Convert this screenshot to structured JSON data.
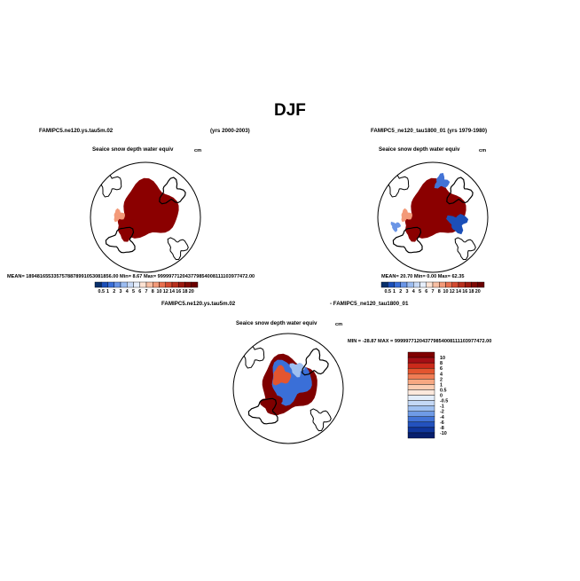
{
  "page": {
    "title": "DJF",
    "left_case": "FAMIPC5.ne120.ys.tau5m.02",
    "left_years": "(yrs 2000-2003)",
    "right_case": "FAMIPC5_ne120_tau1800_01 (yrs 1979-1980)",
    "diff_case_a": "FAMIPC5.ne120.ys.tau5m.02",
    "diff_case_b": "- FAMIPC5_ne120_tau1800_01"
  },
  "panels": {
    "left": {
      "var_title": "Seaice snow depth water equiv",
      "units": "cm",
      "stats": "MEAN= 1894816553357578878991053081856.00   Min=     8.67   Max=  999997712043779854008111103977472.00"
    },
    "right": {
      "var_title": "Seaice snow depth water equiv",
      "units": "cm",
      "stats": "MEAN=   20.70   Min=    0.00   Max=   62.35"
    },
    "diff": {
      "var_title": "Seaice snow depth water equiv",
      "units": "cm",
      "stats": "MIN = -28.87  MAX = 999997712043779854008111103977472.00"
    }
  },
  "colors": {
    "land_outline": "#000000",
    "ice_dark_red": "#8b0000"
  },
  "chart_data": [
    {
      "type": "heatmap",
      "projection": "north-polar-stereographic",
      "title": "Seaice snow depth water equiv",
      "units": "cm",
      "colorbar": {
        "orientation": "horizontal",
        "labels": [
          "0.5",
          "1",
          "2",
          "3",
          "4",
          "5",
          "6",
          "7",
          "8",
          "10",
          "12",
          "14",
          "16",
          "18",
          "20"
        ],
        "colors": [
          "#08306b",
          "#1b4fb8",
          "#3a6fd8",
          "#6a95e6",
          "#9bbcf0",
          "#c7d9f6",
          "#e6eefb",
          "#fde2d2",
          "#f8bfa3",
          "#f39a79",
          "#e8704f",
          "#d34a30",
          "#b8301e",
          "#9c1a10",
          "#7f0a05",
          "#6b0000"
        ]
      },
      "stats": {
        "mean": "1894816553357578878991053081856.00",
        "min": "8.67",
        "max": "999997712043779854008111103977472.00"
      }
    },
    {
      "type": "heatmap",
      "projection": "north-polar-stereographic",
      "title": "Seaice snow depth water equiv",
      "units": "cm",
      "colorbar": {
        "orientation": "horizontal",
        "labels": [
          "0.5",
          "1",
          "2",
          "3",
          "4",
          "5",
          "6",
          "7",
          "8",
          "10",
          "12",
          "14",
          "16",
          "18",
          "20"
        ],
        "colors": [
          "#08306b",
          "#1b4fb8",
          "#3a6fd8",
          "#6a95e6",
          "#9bbcf0",
          "#c7d9f6",
          "#e6eefb",
          "#fde2d2",
          "#f8bfa3",
          "#f39a79",
          "#e8704f",
          "#d34a30",
          "#b8301e",
          "#9c1a10",
          "#7f0a05",
          "#6b0000"
        ]
      },
      "stats": {
        "mean": "20.70",
        "min": "0.00",
        "max": "62.35"
      }
    },
    {
      "type": "heatmap",
      "projection": "north-polar-stereographic",
      "title": "Seaice snow depth water equiv",
      "units": "cm",
      "colorbar": {
        "orientation": "vertical",
        "labels": [
          "10",
          "8",
          "6",
          "4",
          "2",
          "1",
          "0.5",
          "0",
          "-0.5",
          "-1",
          "-2",
          "-4",
          "-6",
          "-8",
          "-10"
        ],
        "colors": [
          "#7f0000",
          "#a50f15",
          "#cb2a1b",
          "#e3552f",
          "#f07d55",
          "#f7a882",
          "#fbcdb2",
          "#fde8dc",
          "#e3edfb",
          "#c4d8f5",
          "#9ebff0",
          "#6f9be6",
          "#4273d6",
          "#2352be",
          "#10369c",
          "#071f6e"
        ]
      },
      "stats": {
        "min": "-28.87",
        "max": "999997712043779854008111103977472.00"
      }
    }
  ]
}
